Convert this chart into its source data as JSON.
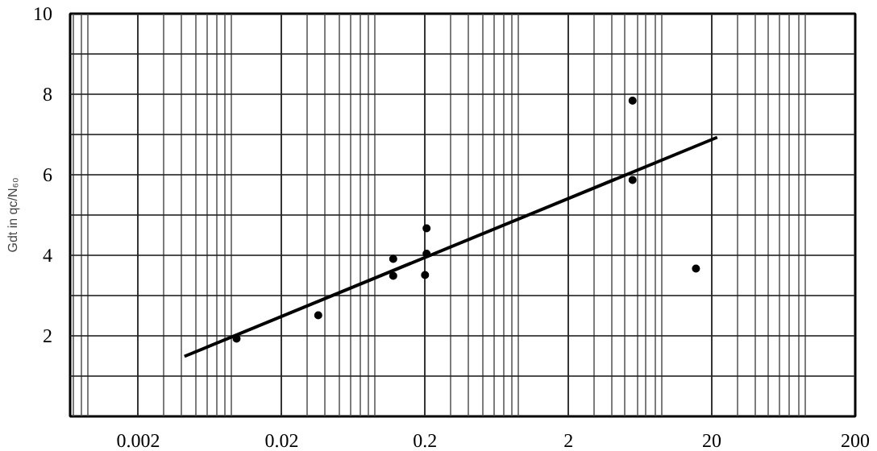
{
  "chart_data": {
    "type": "scatter",
    "ylabel": "Gdt in qc/N₆₀",
    "log": "x",
    "grid": true,
    "xlim": [
      0.00067,
      200
    ],
    "ylim": [
      0,
      10
    ],
    "xticks": [
      0.002,
      0.02,
      0.2,
      2,
      20,
      200
    ],
    "yticks": [
      {
        "value": 1,
        "label": null
      },
      2,
      {
        "value": 3,
        "label": null
      },
      4,
      {
        "value": 5,
        "label": null
      },
      6,
      {
        "value": 7,
        "label": null
      },
      8,
      {
        "value": 9,
        "label": null
      },
      10
    ],
    "series": [
      {
        "marker": "circle",
        "color": "#000000",
        "x": [
          0.0097,
          0.036,
          0.12,
          0.12,
          0.205,
          0.205,
          0.2,
          5.6,
          5.6,
          15.5
        ],
        "values": [
          1.93,
          2.51,
          3.91,
          3.49,
          4.67,
          4.04,
          3.51,
          7.84,
          5.87,
          3.67
        ]
      },
      {
        "type": "line",
        "marker": "none",
        "color": "#000000",
        "x": [
          0.0042,
          21.8
        ],
        "values": [
          1.49,
          6.93
        ]
      }
    ]
  }
}
